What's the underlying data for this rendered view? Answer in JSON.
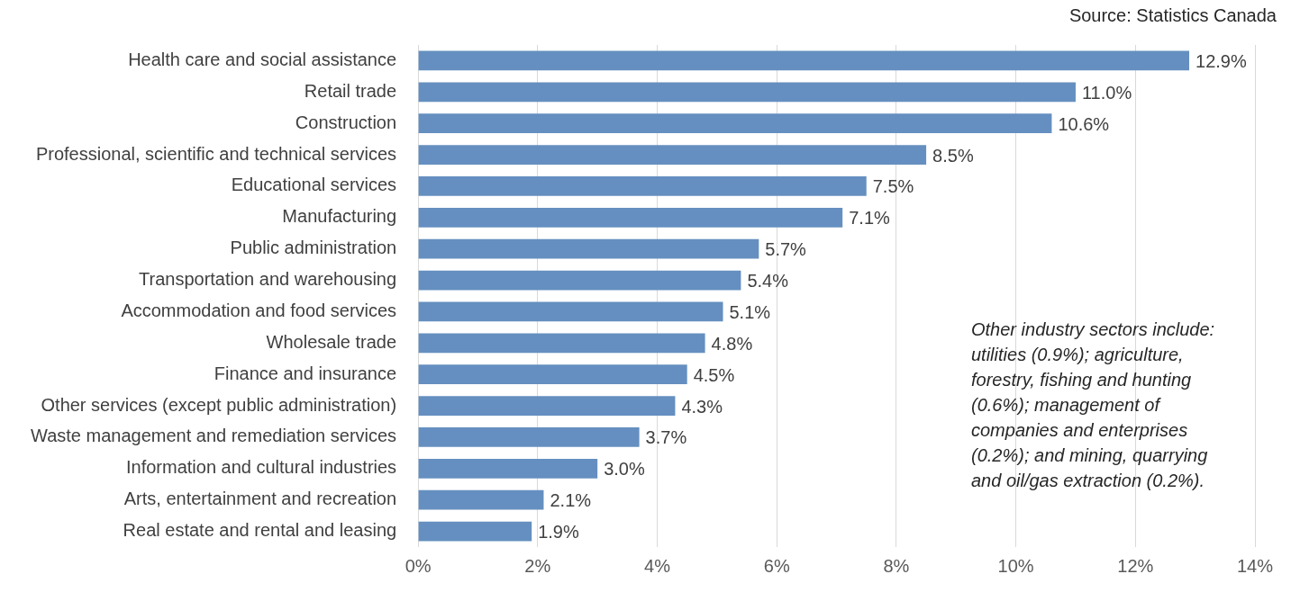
{
  "chart_data": {
    "type": "bar",
    "orientation": "horizontal",
    "categories": [
      "Health care and social assistance",
      "Retail trade",
      "Construction",
      "Professional, scientific and technical services",
      "Educational services",
      "Manufacturing",
      "Public administration",
      "Transportation and warehousing",
      "Accommodation and food services",
      "Wholesale trade",
      "Finance and insurance",
      "Other services (except public administration)",
      "Waste management and remediation services",
      "Information and cultural industries",
      "Arts, entertainment and recreation",
      "Real estate and rental and leasing"
    ],
    "values": [
      12.9,
      11.0,
      10.6,
      8.5,
      7.5,
      7.1,
      5.7,
      5.4,
      5.1,
      4.8,
      4.5,
      4.3,
      3.7,
      3.0,
      2.1,
      1.9
    ],
    "value_labels": [
      "12.9%",
      "11.0%",
      "10.6%",
      "8.5%",
      "7.5%",
      "7.1%",
      "5.7%",
      "5.4%",
      "5.1%",
      "4.8%",
      "4.5%",
      "4.3%",
      "3.7%",
      "3.0%",
      "2.1%",
      "1.9%"
    ],
    "color": "#658fc0",
    "xlim": [
      0,
      14
    ],
    "xticks": [
      {
        "value": 0,
        "label": "0%"
      },
      {
        "value": 2,
        "label": "2%"
      },
      {
        "value": 4,
        "label": "4%"
      },
      {
        "value": 6,
        "label": "6%"
      },
      {
        "value": 8,
        "label": "8%"
      },
      {
        "value": 10,
        "label": "10%"
      },
      {
        "value": 12,
        "label": "12%"
      },
      {
        "value": 14,
        "label": "14%"
      }
    ],
    "grid": "x",
    "legend": false,
    "annotations": [
      "Source: Statistics Canada",
      "Other industry sectors include: utilities (0.9%); agriculture, forestry, fishing and hunting (0.6%); management of companies and enterprises (0.2%); and mining, quarrying and oil/gas extraction (0.2%)."
    ]
  }
}
